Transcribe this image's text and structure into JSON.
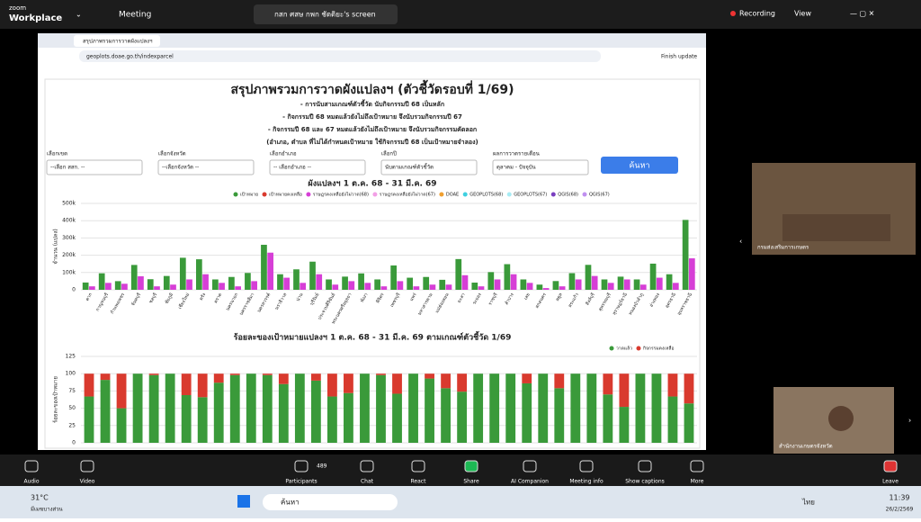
{
  "zoom": {
    "brand": "zoom",
    "product": "Workplace",
    "meeting": "Meeting",
    "screen_tab": "กสก ศสษ กพก ชัดติยะ's screen",
    "recording": "Recording",
    "view": "View"
  },
  "browser": {
    "tab": "สรุปภาพรวมการวาดผังแปลงฯ",
    "url": "geoplots.doae.go.th/indexparcel",
    "update": "Finish update"
  },
  "dashboard": {
    "title": "สรุปภาพรวมการวาดผังแปลงฯ (ตัวชี้วัดรอบที่ 1/69)",
    "notes": [
      "- การนับสามเกณฑ์ตัวชี้วัด นับกิจกรรมปี 68 เป็นหลัก",
      "- กิจกรรมปี 68 หมดแล้วยังไม่ถึงเป้าหมาย จึงนับรวมกิจกรรมปี 67",
      "- กิจกรรมปี 68 และ 67 หมดแล้วยังไม่ถึงเป้าหมาย จึงนับรวมกิจกรรมคัดลอก",
      "(อำเภอ, ตำบล ที่ไม่ได้กำหนดเป้าหมาย ใช้กิจกรรมปี 68 เป็นเป้าหมายจำลอง)"
    ],
    "filters": [
      {
        "label": "เลือกเขต",
        "value": "--เลือก สสก. --"
      },
      {
        "label": "เลือกจังหวัด",
        "value": "--เลือกจังหวัด --"
      },
      {
        "label": "เลือกอำเภอ",
        "value": "-- เลือกอำเภอ --"
      },
      {
        "label": "เลือกปี",
        "value": "นับตามเกณฑ์ตัวชี้วัด"
      },
      {
        "label": "ผลการวาดรายเดือน",
        "value": "ตุลาคม - ปัจจุบัน"
      }
    ],
    "button": "ค้นหา"
  },
  "chart_data": [
    {
      "type": "bar",
      "title": "ผังแปลงฯ 1 ต.ค. 68 - 31 มี.ค. 69",
      "y_label": "จำนวน (แปลง)",
      "categories": [
        "ตาก",
        "กาญจนบุรี",
        "กำแพงเพชร",
        "จันทบุรี",
        "ชลบุรี",
        "ชัยภูมิ",
        "เชียงใหม่",
        "ตรัง",
        "ตราด",
        "นครนายก",
        "นครราชสีมา",
        "นครสวรรค์",
        "นราธิวาส",
        "น่าน",
        "บุรีรัมย์",
        "ประจวบคีรีขันธ์",
        "พระนครศรีอยุธยา",
        "พังงา",
        "พิจิตร",
        "เพชรบุรี",
        "แพร่",
        "มหาสารคาม",
        "แม่ฮ่องสอน",
        "ยะลา",
        "ระยอง",
        "ราชบุรี",
        "ลำปาง",
        "เลย",
        "สกลนคร",
        "สตูล",
        "สระแก้ว",
        "สิงห์บุรี",
        "สุพรรณบุรี",
        "สุราษฎร์ธานี",
        "หนองบัวลำภู",
        "อ่างทอง",
        "อุดรธานี",
        "อุบลราชธานี"
      ],
      "series": [
        {
          "name": "เป้าหมาย",
          "color": "#3a9a3a",
          "values": [
            42162,
            95513,
            50000,
            143809,
            61265,
            80000,
            185434,
            176623,
            60000,
            74360,
            97529,
            260531,
            90000,
            118401,
            162825,
            60000,
            76250,
            94805,
            60000,
            140919,
            70000,
            74310,
            57894,
            177816,
            41658,
            102399,
            148325,
            60000,
            30000,
            50561,
            96198,
            144331,
            60000,
            76071,
            60000,
            151381,
            90000,
            404493
          ]
        },
        {
          "name": "เป้าหมายคงเหลือ",
          "color": "#d93a2e"
        },
        {
          "name": "ราษฎรคงเหลือยังไม่วาด(68)",
          "color": "#d63fd6",
          "values": [
            20000,
            40000,
            35000,
            78250,
            20000,
            30000,
            60000,
            90000,
            40000,
            20000,
            50000,
            215000,
            70000,
            40000,
            90000,
            30000,
            50000,
            40000,
            20000,
            50000,
            20000,
            30000,
            30000,
            84350,
            20000,
            60000,
            90000,
            40000,
            10000,
            20000,
            60000,
            80000,
            40000,
            60000,
            30000,
            70000,
            40000,
            182105
          ]
        },
        {
          "name": "ราษฎรคงเหลือยังไม่วาด(67)",
          "color": "#f2a0e6"
        },
        {
          "name": "DOAE",
          "color": "#f0a030"
        },
        {
          "name": "GEOPLOTS(68)",
          "color": "#3fd0e0"
        },
        {
          "name": "GEOPLOTS(67)",
          "color": "#a8ecf4"
        },
        {
          "name": "QGIS(68)",
          "color": "#7a3fc0"
        },
        {
          "name": "QGIS(67)",
          "color": "#c090f0"
        }
      ],
      "ylim": [
        0,
        500000
      ],
      "yticks": [
        0,
        {
          "value": 100000,
          "label": "100k"
        },
        {
          "value": 200000,
          "label": "200k"
        },
        {
          "value": 300000,
          "label": "300k"
        },
        {
          "value": 400000,
          "label": "400k"
        },
        {
          "value": 500000,
          "label": "500k"
        }
      ],
      "grid": true
    },
    {
      "type": "stacked_bar",
      "title": "ร้อยละของเป้าหมายแปลงฯ 1 ต.ค. 68 - 31 มี.ค. 69 ตามเกณฑ์ตัวชี้วัด 1/69",
      "y_label": "ร้อยละของเป้าหมาย",
      "series": [
        {
          "name": "วาดแล้ว",
          "color": "#3a9a3a",
          "values": [
            67,
            91,
            50,
            100,
            98,
            100,
            69,
            66,
            87,
            98,
            100,
            98,
            85,
            100,
            90,
            67,
            72,
            100,
            98,
            71,
            100,
            93,
            79,
            74,
            100,
            100,
            100,
            86,
            100,
            79,
            100,
            100,
            70,
            52,
            100,
            100,
            67,
            57
          ]
        },
        {
          "name": "กิจกรรมคงเหลือ",
          "color": "#d93a2e",
          "values": [
            33,
            9,
            50,
            0,
            2,
            0,
            31,
            34,
            13,
            2,
            0,
            2,
            15,
            0,
            10,
            33,
            28,
            0,
            2,
            29,
            0,
            7,
            21,
            26,
            0,
            0,
            0,
            14,
            0,
            21,
            0,
            0,
            30,
            48,
            0,
            0,
            33,
            43
          ]
        }
      ],
      "ylim": [
        0,
        125
      ],
      "yticks": [
        0,
        25,
        50,
        75,
        100,
        125
      ],
      "grid": true
    }
  ],
  "videos": [
    "กรมส่งเสริมการเกษตร",
    "สำนักงานเกษตรจังหวัด"
  ],
  "toolbar": {
    "audio": "Audio",
    "video": "Video",
    "participants": "Participants",
    "count": 489,
    "chat": "Chat",
    "react": "React",
    "share": "Share",
    "ai": "AI Companion",
    "info": "Meeting info",
    "captions": "Show captions",
    "more": "More",
    "leave": "Leave"
  },
  "taskbar": {
    "temp": "31°C",
    "weather": "มีเมฆบางส่วน",
    "search": "ค้นหา",
    "lang": "ไทย",
    "time": "11:39",
    "date": "26/2/2569"
  }
}
